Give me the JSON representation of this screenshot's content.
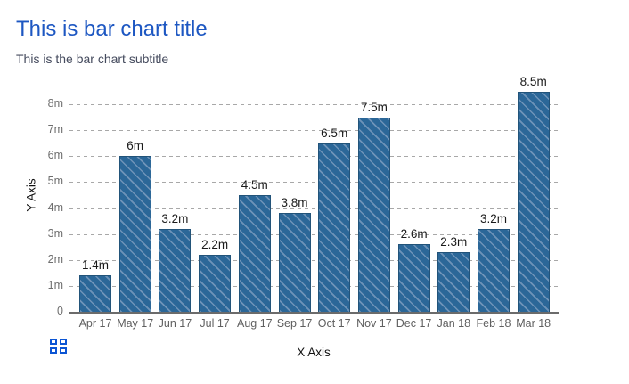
{
  "header": {
    "title": "This is bar chart title",
    "subtitle": "This is the bar chart subtitle"
  },
  "controls": {
    "context_menu_icon": "grid-squares-icon"
  },
  "colors": {
    "title": "#1d57c2",
    "subtitle": "#454b5e",
    "bar_fill": "#2b6798",
    "bar_hatch": "#6e93b8",
    "bar_border": "#225379",
    "grid": "#a8a8a8",
    "axis_line": "#6b6b6b",
    "tick_text": "#6e6e6e",
    "bar_label": "#1a1a1a",
    "icon_blue": "#0c55d4"
  },
  "chart_data": {
    "type": "bar",
    "title": "This is bar chart title",
    "subtitle": "This is the bar chart subtitle",
    "xlabel": "X Axis",
    "ylabel": "Y Axis",
    "categories": [
      "Apr 17",
      "May 17",
      "Jun 17",
      "Jul 17",
      "Aug 17",
      "Sep 17",
      "Oct 17",
      "Nov 17",
      "Dec 17",
      "Jan 18",
      "Feb 18",
      "Mar 18"
    ],
    "values": [
      1.4,
      6,
      3.2,
      2.2,
      4.5,
      3.8,
      6.5,
      7.5,
      2.6,
      2.3,
      3.2,
      8.5
    ],
    "value_labels": [
      "1.4m",
      "6m",
      "3.2m",
      "2.2m",
      "4.5m",
      "3.8m",
      "6.5m",
      "7.5m",
      "2.6m",
      "2.3m",
      "3.2m",
      "8.5m"
    ],
    "value_unit": "millions",
    "ylim": [
      0,
      9
    ],
    "yticks": {
      "values": [
        0,
        1,
        2,
        3,
        4,
        5,
        6,
        7,
        8
      ],
      "labels": [
        "0",
        "1m",
        "2m",
        "3m",
        "4m",
        "5m",
        "6m",
        "7m",
        "8m"
      ]
    },
    "grid": "horizontal-dashed",
    "legend": "none",
    "bar_style": "diagonal-hatch"
  }
}
